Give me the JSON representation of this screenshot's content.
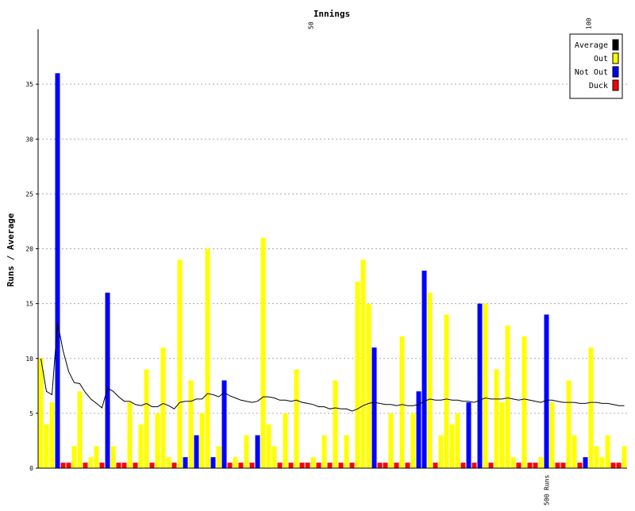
{
  "chart_data": {
    "type": "bar",
    "title": "",
    "xlabel": "Innings",
    "ylabel": "Runs / Average",
    "ylim": [
      0,
      40
    ],
    "yticks": [
      0,
      5,
      10,
      15,
      20,
      25,
      30,
      35
    ],
    "xlim": [
      0,
      106
    ],
    "top_ticks": [
      {
        "x": 50,
        "label": "50"
      },
      {
        "x": 100,
        "label": "100"
      }
    ],
    "bottom_marker": {
      "x": 92,
      "label": "500 Runs"
    },
    "grid": true,
    "legend_position": "top-right",
    "legend": [
      {
        "label": "Average",
        "key": "average",
        "color": "#000000"
      },
      {
        "label": "Out",
        "key": "out",
        "color": "#ffff00"
      },
      {
        "label": "Not Out",
        "key": "not_out",
        "color": "#0000ff"
      },
      {
        "label": "Duck",
        "key": "duck",
        "color": "#ff0000"
      }
    ],
    "innings_runs": [
      10,
      4,
      6,
      36,
      0,
      0,
      2,
      7,
      0,
      1,
      2,
      0,
      16,
      2,
      0,
      0,
      6,
      0,
      4,
      9,
      0,
      5,
      11,
      1,
      0,
      19,
      1,
      8,
      3,
      5,
      20,
      1,
      2,
      8,
      0,
      1,
      0,
      3,
      0,
      3,
      21,
      4,
      2,
      0,
      5,
      0,
      9,
      0,
      0,
      1,
      0,
      3,
      0,
      8,
      0,
      3,
      0,
      17,
      19,
      15,
      11,
      0,
      0,
      5,
      0,
      12,
      0,
      5,
      7,
      18,
      16,
      0,
      3,
      14,
      4,
      5,
      0,
      6,
      0,
      15,
      15,
      0,
      9,
      6,
      13,
      1,
      0,
      12,
      0,
      0,
      1,
      14,
      6,
      0,
      0,
      8,
      3,
      0,
      1,
      11,
      2,
      1,
      3,
      0,
      0,
      2
    ],
    "innings_status": [
      "O",
      "O",
      "O",
      "N",
      "D",
      "D",
      "O",
      "O",
      "D",
      "O",
      "O",
      "D",
      "N",
      "O",
      "D",
      "D",
      "O",
      "D",
      "O",
      "O",
      "D",
      "O",
      "O",
      "O",
      "D",
      "O",
      "N",
      "O",
      "N",
      "O",
      "O",
      "N",
      "O",
      "N",
      "D",
      "O",
      "D",
      "O",
      "D",
      "N",
      "O",
      "O",
      "O",
      "D",
      "O",
      "D",
      "O",
      "D",
      "D",
      "O",
      "D",
      "O",
      "D",
      "O",
      "D",
      "O",
      "D",
      "O",
      "O",
      "O",
      "N",
      "D",
      "D",
      "O",
      "D",
      "O",
      "D",
      "O",
      "N",
      "N",
      "O",
      "D",
      "O",
      "O",
      "O",
      "O",
      "D",
      "N",
      "D",
      "N",
      "O",
      "D",
      "O",
      "O",
      "O",
      "O",
      "D",
      "O",
      "D",
      "D",
      "O",
      "N",
      "O",
      "D",
      "D",
      "O",
      "O",
      "D",
      "N",
      "O",
      "O",
      "O",
      "O",
      "D",
      "D",
      "O"
    ],
    "series": [
      {
        "name": "Average",
        "values": [
          10,
          7,
          6.7,
          13.3,
          10.7,
          8.8,
          7.8,
          7.7,
          6.9,
          6.3,
          5.9,
          5.5,
          7.3,
          7.0,
          6.5,
          6.1,
          6.1,
          5.8,
          5.7,
          5.9,
          5.6,
          5.6,
          5.9,
          5.7,
          5.4,
          6.0,
          6.1,
          6.1,
          6.3,
          6.3,
          6.8,
          6.7,
          6.5,
          6.9,
          6.6,
          6.4,
          6.2,
          6.1,
          6.0,
          6.1,
          6.5,
          6.5,
          6.4,
          6.2,
          6.2,
          6.1,
          6.2,
          6.0,
          5.9,
          5.8,
          5.6,
          5.6,
          5.4,
          5.5,
          5.4,
          5.4,
          5.2,
          5.4,
          5.7,
          5.9,
          6.0,
          5.9,
          5.8,
          5.8,
          5.7,
          5.8,
          5.7,
          5.7,
          5.8,
          6.1,
          6.3,
          6.2,
          6.2,
          6.3,
          6.2,
          6.2,
          6.1,
          6.1,
          6.0,
          6.2,
          6.4,
          6.3,
          6.3,
          6.3,
          6.4,
          6.3,
          6.2,
          6.3,
          6.2,
          6.1,
          6.0,
          6.2,
          6.2,
          6.1,
          6.0,
          6.0,
          6.0,
          5.9,
          5.9,
          6.0,
          6.0,
          5.9,
          5.9,
          5.8,
          5.7,
          5.7
        ]
      }
    ]
  }
}
